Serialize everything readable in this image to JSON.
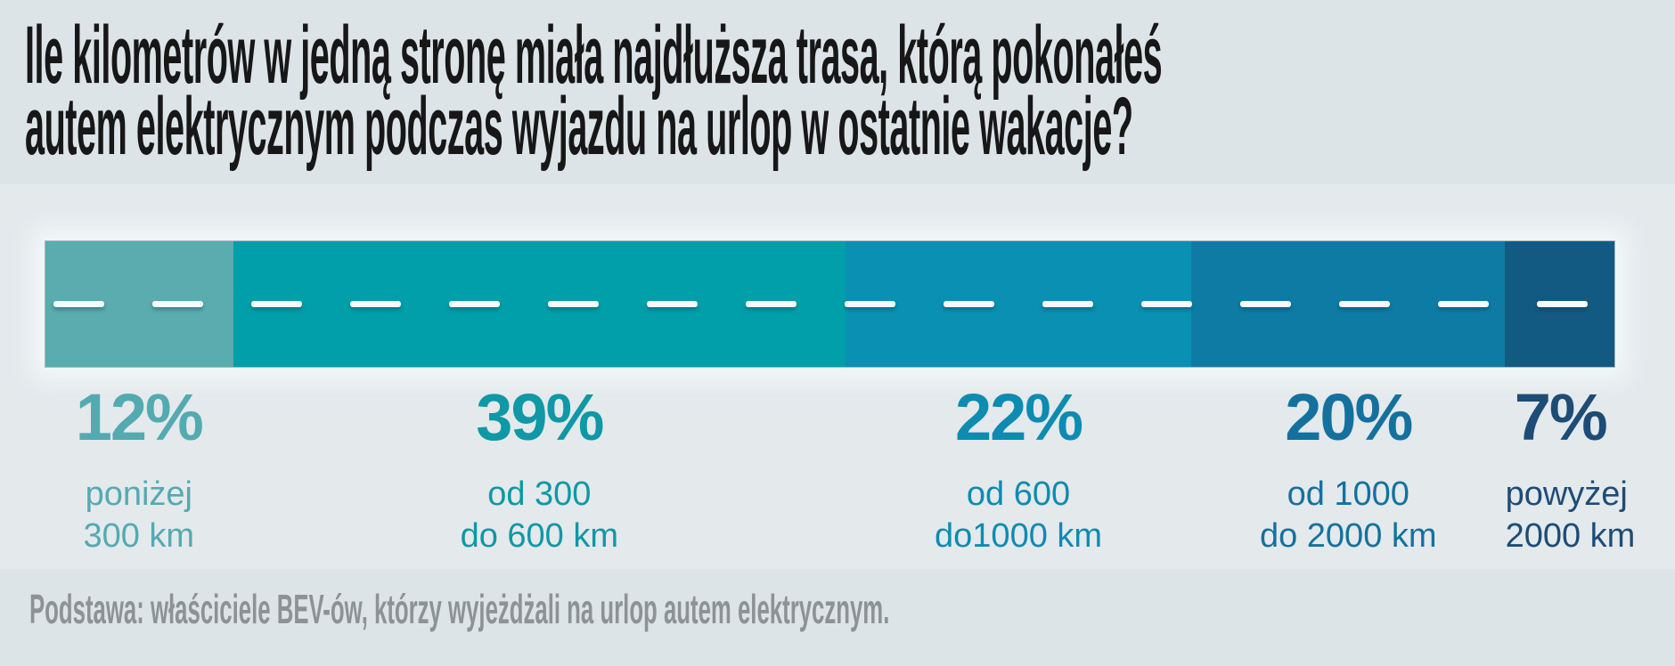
{
  "title": {
    "line1": "Ile kilometrów w jedną stronę miała najdłuższa trasa, którą pokonałeś",
    "line2": "autem elektrycznym podczas wyjazdu na urlop w ostatnie wakacje?"
  },
  "footnote": "Podstawa: właściciele BEV-ów, którzy wyjeżdżali na urlop autem elektrycznym.",
  "chart_data": {
    "type": "bar",
    "subtype": "100-percent-stacked-horizontal-road",
    "title": "Ile kilometrów w jedną stronę miała najdłuższa trasa, którą pokonałeś autem elektrycznym podczas wyjazdu na urlop w ostatnie wakacje?",
    "unit": "%",
    "categories": [
      "poniżej 300 km",
      "od 300 do 600 km",
      "od 600 do1000 km",
      "od 1000 do 2000 km",
      "powyżej 2000 km"
    ],
    "values": [
      12,
      39,
      22,
      20,
      7
    ],
    "xlim": [
      0,
      100
    ],
    "legend": "none",
    "grid": "off",
    "segments": [
      {
        "percent": "12%",
        "value": 12,
        "range_line1": "poniżej",
        "range_line2": "300 km",
        "road_color": "#5aacae",
        "label_color": "#54aab1"
      },
      {
        "percent": "39%",
        "value": 39,
        "range_line1": "od 300",
        "range_line2": "do 600 km",
        "road_color": "#019faa",
        "label_color": "#0f98a5"
      },
      {
        "percent": "22%",
        "value": 22,
        "range_line1": "od 600",
        "range_line2": "do1000 km",
        "road_color": "#0a90b2",
        "label_color": "#0d8bb1"
      },
      {
        "percent": "20%",
        "value": 20,
        "range_line1": "od 1000",
        "range_line2": "do 2000 km",
        "road_color": "#0d7ba4",
        "label_color": "#14719e"
      },
      {
        "percent": "7%",
        "value": 7,
        "range_line1": "powyżej",
        "range_line2": "2000 km",
        "road_color": "#125a81",
        "label_color": "#1d4c76"
      }
    ],
    "road": {
      "dash_color": "#f7fafb",
      "dash_count": 16
    }
  }
}
